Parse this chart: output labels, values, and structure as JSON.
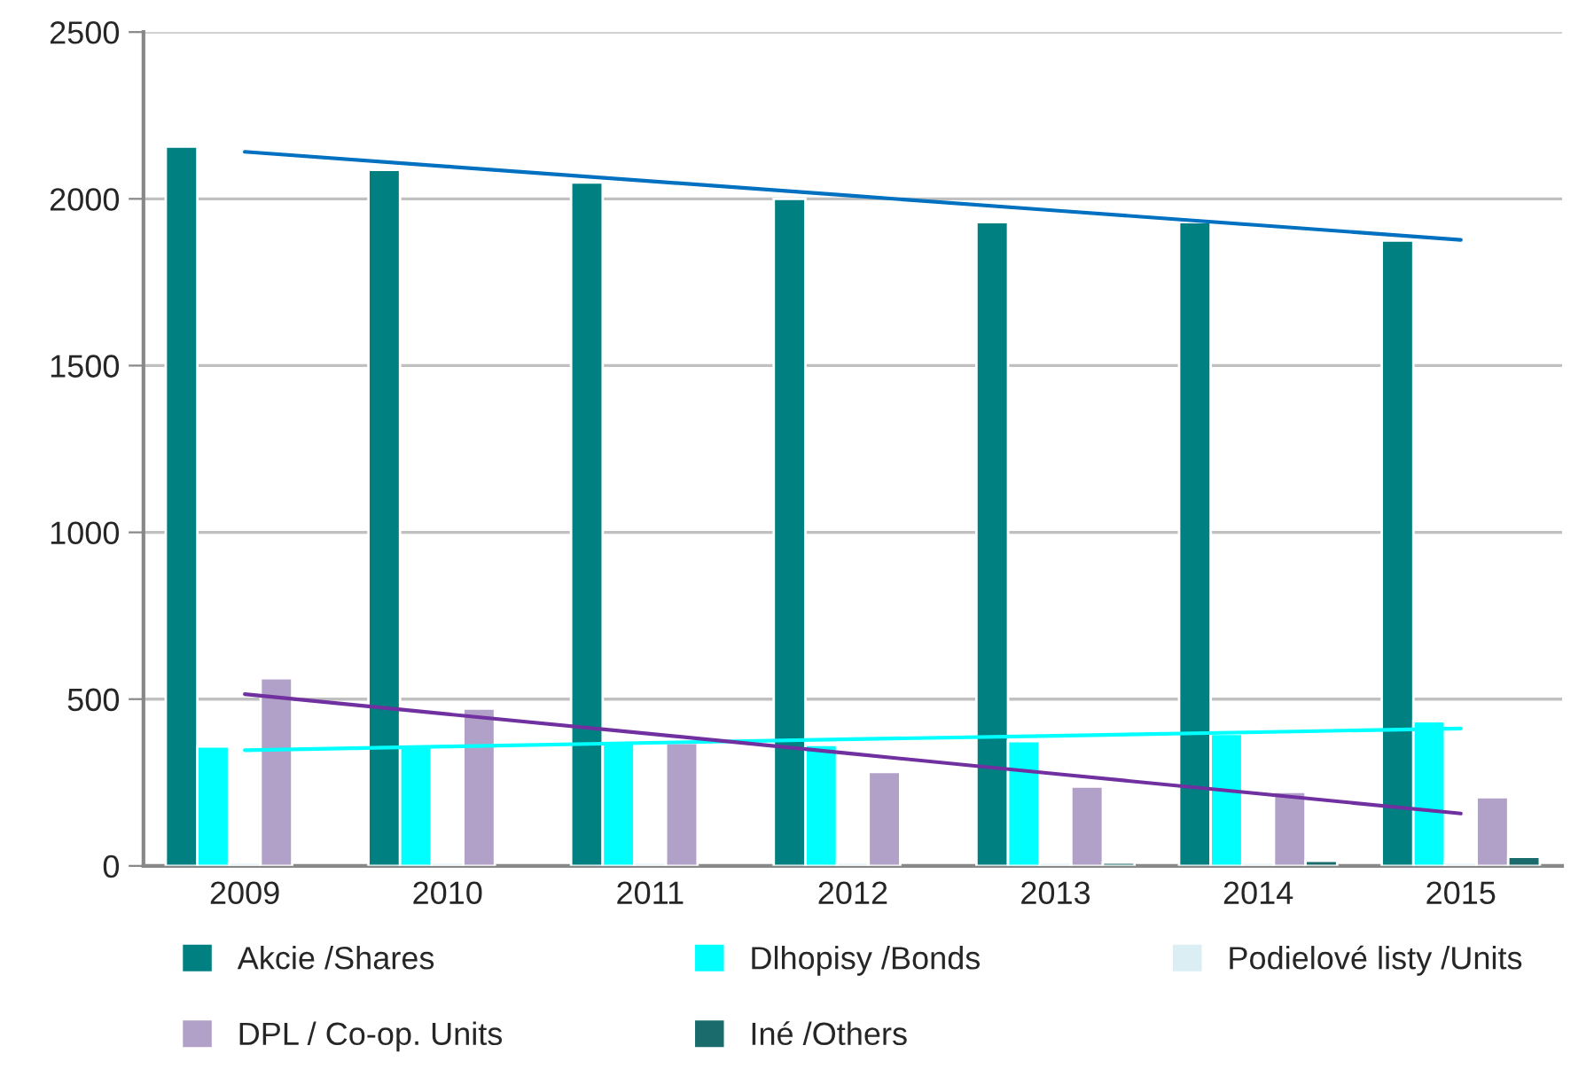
{
  "chart_data": {
    "type": "bar",
    "categories": [
      "2009",
      "2010",
      "2011",
      "2012",
      "2013",
      "2014",
      "2015"
    ],
    "series": [
      {
        "name": "Akcie /Shares",
        "color": "#008080",
        "values": [
          2157,
          2087,
          2049,
          2000,
          1930,
          1930,
          1875
        ]
      },
      {
        "name": "Dlhopisy /Bonds",
        "color": "#00ffff",
        "values": [
          358,
          358,
          369,
          363,
          374,
          396,
          434
        ]
      },
      {
        "name": "Podielové listy /Units",
        "color": "#daeef3",
        "values": [
          10,
          10,
          10,
          10,
          10,
          10,
          10
        ]
      },
      {
        "name": "DPL / Co-op. Units",
        "color": "#b1a0c7",
        "values": [
          563,
          472,
          369,
          282,
          238,
          222,
          206
        ]
      },
      {
        "name": "Iné /Others",
        "color": "#1a6b6b",
        "values": [
          null,
          null,
          null,
          null,
          10,
          15,
          27
        ]
      },
      {
        "type": "line",
        "color": "#0070c0",
        "values": [
          2141,
          2097,
          2053,
          2009,
          1965,
          1921,
          1877
        ]
      },
      {
        "type": "line",
        "color": "#00ffff",
        "values": [
          347,
          358,
          369,
          380,
          390,
          401,
          412
        ]
      },
      {
        "type": "line",
        "color": "#7030a0",
        "values": [
          515,
          455,
          396,
          336,
          276,
          217,
          157
        ]
      }
    ],
    "ylim": [
      0,
      2500
    ],
    "yticks": [
      0,
      500,
      1000,
      1500,
      2000,
      2500
    ],
    "grid": "y",
    "legend": "bottom"
  }
}
